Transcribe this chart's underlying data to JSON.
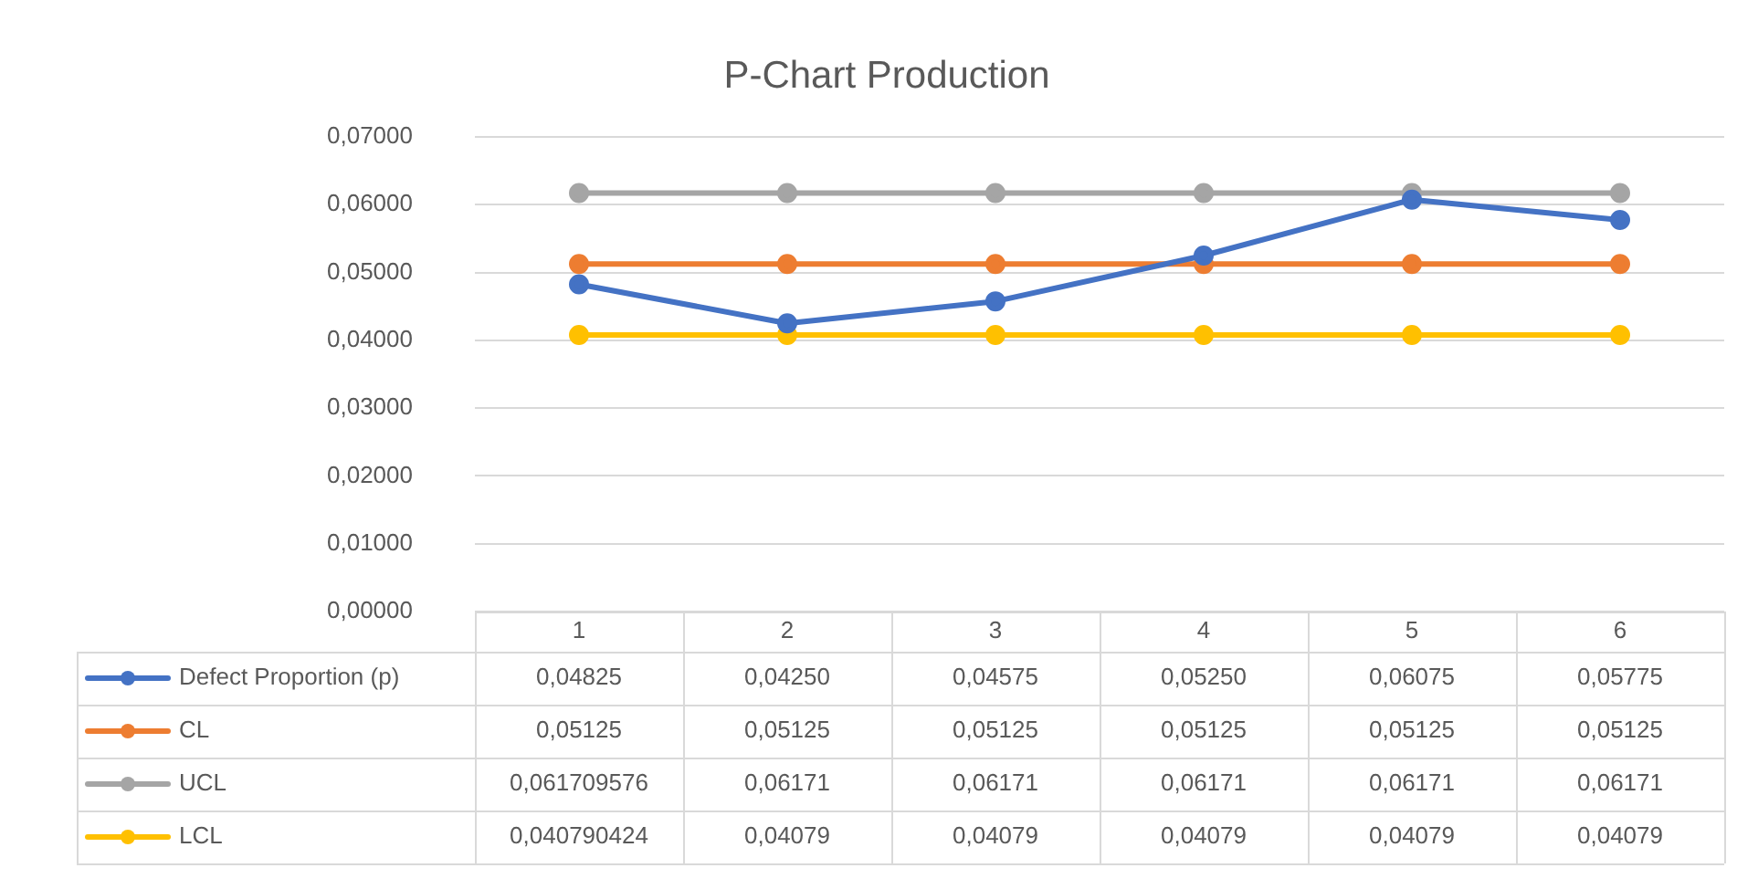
{
  "chart_data": {
    "type": "line",
    "title": "P-Chart Production",
    "categories": [
      "1",
      "2",
      "3",
      "4",
      "5",
      "6"
    ],
    "series": [
      {
        "name": "Defect Proportion (p)",
        "color": "#4472c4",
        "values": [
          0.04825,
          0.0425,
          0.04575,
          0.0525,
          0.06075,
          0.05775
        ],
        "value_labels": [
          "0,04825",
          "0,04250",
          "0,04575",
          "0,05250",
          "0,06075",
          "0,05775"
        ]
      },
      {
        "name": "CL",
        "color": "#ed7d31",
        "values": [
          0.05125,
          0.05125,
          0.05125,
          0.05125,
          0.05125,
          0.05125
        ],
        "value_labels": [
          "0,05125",
          "0,05125",
          "0,05125",
          "0,05125",
          "0,05125",
          "0,05125"
        ]
      },
      {
        "name": "UCL",
        "color": "#a5a5a5",
        "values": [
          0.061709576,
          0.06171,
          0.06171,
          0.06171,
          0.06171,
          0.06171
        ],
        "value_labels": [
          "0,061709576",
          "0,06171",
          "0,06171",
          "0,06171",
          "0,06171",
          "0,06171"
        ]
      },
      {
        "name": "LCL",
        "color": "#ffc000",
        "values": [
          0.040790424,
          0.04079,
          0.04079,
          0.04079,
          0.04079,
          0.04079
        ],
        "value_labels": [
          "0,040790424",
          "0,04079",
          "0,04079",
          "0,04079",
          "0,04079",
          "0,04079"
        ]
      }
    ],
    "ylim": [
      0,
      0.07
    ],
    "yticks": [
      {
        "value": 0,
        "label": "0,00000"
      },
      {
        "value": 0.01,
        "label": "0,01000"
      },
      {
        "value": 0.02,
        "label": "0,02000"
      },
      {
        "value": 0.03,
        "label": "0,03000"
      },
      {
        "value": 0.04,
        "label": "0,04000"
      },
      {
        "value": 0.05,
        "label": "0,05000"
      },
      {
        "value": 0.06,
        "label": "0,06000"
      },
      {
        "value": 0.07,
        "label": "0,07000"
      }
    ],
    "grid": "y",
    "legend": "bottom",
    "marker": "circle",
    "line_style": "solid"
  }
}
